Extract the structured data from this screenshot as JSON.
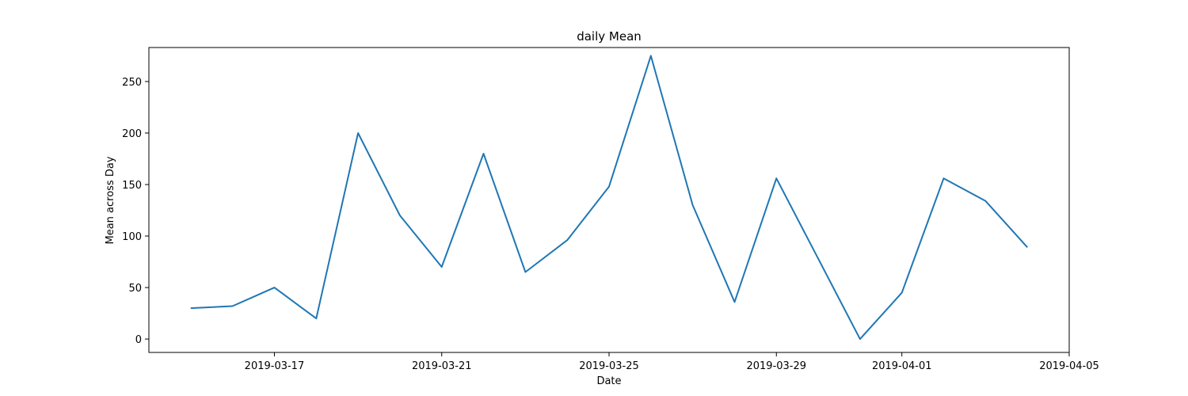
{
  "chart_data": {
    "type": "line",
    "title": "daily Mean",
    "xlabel": "Date",
    "ylabel": "Mean across Day",
    "xlim": [
      "2019-03-14",
      "2019-04-05"
    ],
    "ylim": [
      -13,
      283
    ],
    "x_ticks": [
      "2019-03-17",
      "2019-03-21",
      "2019-03-25",
      "2019-03-29",
      "2019-04-01",
      "2019-04-05"
    ],
    "y_ticks": [
      0,
      50,
      100,
      150,
      200,
      250
    ],
    "grid": false,
    "line_color": "#1f77b4",
    "series": [
      {
        "x": [
          "2019-03-15",
          "2019-03-16",
          "2019-03-17",
          "2019-03-18",
          "2019-03-19",
          "2019-03-20",
          "2019-03-21",
          "2019-03-22",
          "2019-03-23",
          "2019-03-24",
          "2019-03-25",
          "2019-03-26",
          "2019-03-27",
          "2019-03-28",
          "2019-03-29",
          "2019-03-30",
          "2019-03-31",
          "2019-04-01",
          "2019-04-02",
          "2019-04-03",
          "2019-04-04"
        ],
        "y": [
          30,
          32,
          50,
          20,
          200,
          120,
          70,
          180,
          65,
          96,
          148,
          275,
          130,
          36,
          156,
          78,
          0,
          45,
          156,
          134,
          89
        ]
      }
    ]
  }
}
